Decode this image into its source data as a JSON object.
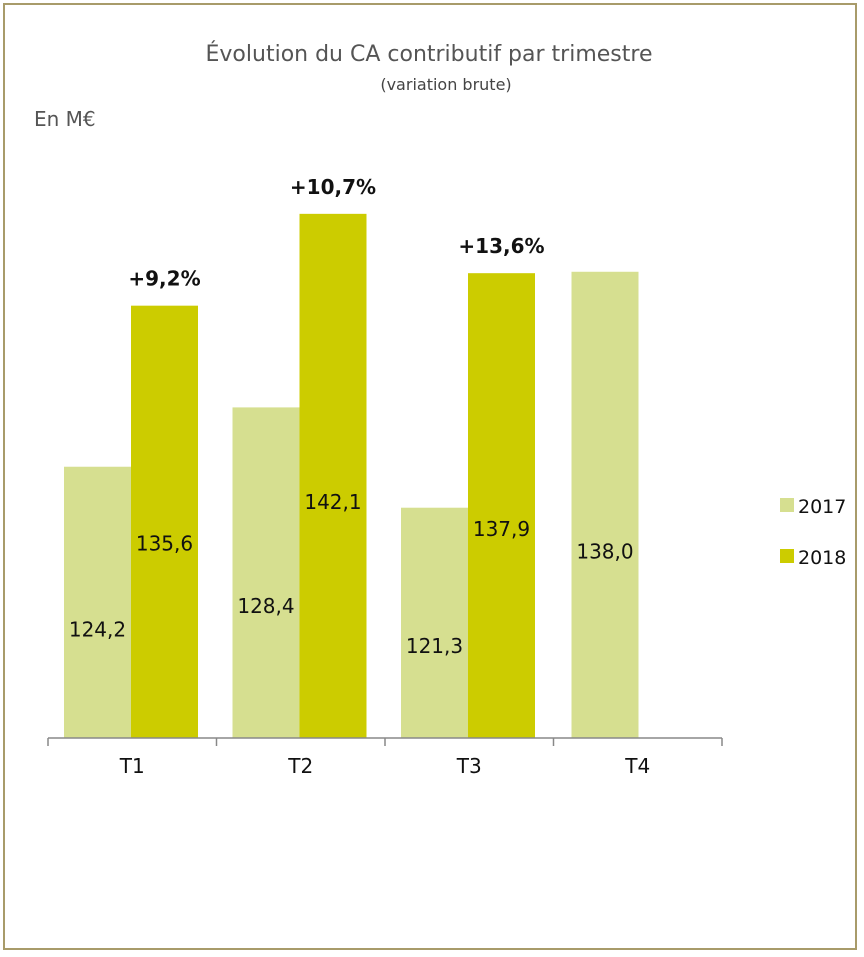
{
  "chart_data": {
    "type": "bar",
    "title": "Évolution du CA contributif par trimestre",
    "subtitle": "(variation brute)",
    "unit_label": "En M€",
    "categories": [
      "T1",
      "T2",
      "T3",
      "T4"
    ],
    "series": [
      {
        "name": "2017",
        "values": [
          124.2,
          128.4,
          121.3,
          138.0
        ],
        "labels": [
          "124,2",
          "128,4",
          "121,3",
          "138,0"
        ],
        "color": "#d6df90"
      },
      {
        "name": "2018",
        "values": [
          135.6,
          142.1,
          137.9,
          null
        ],
        "labels": [
          "135,6",
          "142,1",
          "137,9",
          ""
        ],
        "color": "#cccc00"
      }
    ],
    "annotations": [
      "+9,2%",
      "+10,7%",
      "+13,6%",
      ""
    ],
    "ylim": [
      105,
      144
    ],
    "grid": false,
    "legend_position": "right"
  }
}
